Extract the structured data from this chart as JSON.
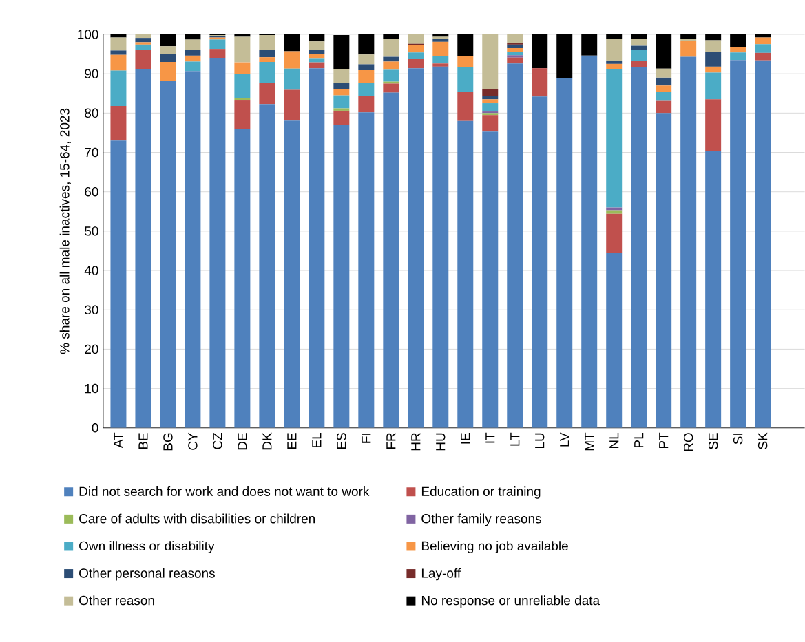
{
  "chart_data": {
    "type": "bar",
    "stacked": true,
    "ylabel": "% share on all male inactives, 15-64, 2023",
    "categories": [
      "AT",
      "BE",
      "BG",
      "CY",
      "CZ",
      "DE",
      "DK",
      "EE",
      "EL",
      "ES",
      "FI",
      "FR",
      "HR",
      "HU",
      "IE",
      "IT",
      "LT",
      "LU",
      "LV",
      "MT",
      "NL",
      "PL",
      "PT",
      "RO",
      "SE",
      "SI",
      "SK"
    ],
    "ylim": [
      0,
      100
    ],
    "yticks": [
      0,
      10,
      20,
      30,
      40,
      50,
      60,
      70,
      80,
      90,
      100
    ],
    "grid": "y",
    "legend": "bottom",
    "series": [
      {
        "name": "Did not search for work and does not want to work",
        "color": "#4f81bd",
        "values": [
          73.0,
          91.1,
          88.2,
          90.7,
          94.0,
          76.0,
          82.3,
          78.1,
          91.4,
          77.0,
          80.2,
          85.2,
          91.4,
          91.8,
          78.0,
          75.3,
          92.6,
          84.2,
          88.9,
          94.6,
          44.4,
          91.7,
          80.0,
          94.3,
          70.3,
          93.5,
          93.4
        ]
      },
      {
        "name": "Education or training",
        "color": "#c0504d",
        "values": [
          8.8,
          4.9,
          0,
          0,
          2.3,
          7.2,
          5.4,
          7.8,
          1.5,
          3.6,
          4.1,
          2.3,
          2.3,
          0.8,
          7.4,
          4.2,
          1.5,
          7.2,
          0,
          0,
          10.0,
          1.6,
          3.1,
          0,
          13.2,
          0,
          1.9
        ]
      },
      {
        "name": "Care of adults with disabilities or children",
        "color": "#9bbb59",
        "values": [
          0,
          0,
          0,
          0,
          0,
          0.7,
          0,
          0,
          0,
          0.6,
          0,
          0.5,
          0,
          0,
          0,
          0.5,
          0,
          0,
          0,
          0,
          0.9,
          0,
          0,
          0,
          0,
          0,
          0
        ]
      },
      {
        "name": "Other family reasons",
        "color": "#8064a2",
        "values": [
          0,
          0,
          0,
          0,
          0,
          0,
          0,
          0,
          0,
          null,
          0,
          0,
          0,
          0,
          0,
          0.4,
          0.6,
          0,
          0,
          0,
          0.7,
          0,
          0,
          0,
          0,
          0,
          0
        ]
      },
      {
        "name": "Own illness or disability",
        "color": "#4bacc6",
        "values": [
          9.0,
          1.4,
          0,
          2.4,
          2.4,
          6.1,
          5.3,
          5.4,
          0.9,
          3.3,
          3.4,
          3.0,
          1.7,
          1.8,
          6.3,
          2.1,
          0.9,
          0,
          0,
          0,
          35.1,
          2.8,
          2.3,
          0,
          6.8,
          1.9,
          2.2
        ]
      },
      {
        "name": "Believing no job available",
        "color": "#f79646",
        "values": [
          4.0,
          0.6,
          4.8,
          1.5,
          0.5,
          2.9,
          1.2,
          4.4,
          1.2,
          1.6,
          3.2,
          2.1,
          1.8,
          3.7,
          2.8,
          1.0,
          0.9,
          0,
          0,
          0,
          1.4,
          0,
          1.6,
          4.1,
          1.5,
          1.4,
          1.7
        ]
      },
      {
        "name": "Other personal reasons",
        "color": "#2c4d75",
        "values": [
          1.1,
          1.1,
          2.0,
          1.4,
          0.3,
          0,
          1.8,
          0,
          1.0,
          1.5,
          1.5,
          1.2,
          0,
          0.7,
          0,
          0.9,
          0.9,
          0,
          0,
          0,
          0.8,
          1.0,
          2.0,
          0,
          3.7,
          0,
          0
        ]
      },
      {
        "name": "Lay-off",
        "color": "#772c2a",
        "values": [
          0,
          0,
          0,
          0,
          0,
          0,
          0,
          0,
          0,
          0,
          0,
          0,
          0.4,
          0,
          0,
          1.7,
          0.5,
          0,
          0,
          0,
          0,
          0,
          0,
          0,
          0,
          0,
          0
        ]
      },
      {
        "name": "Other reason",
        "color": "#c4bd97",
        "values": [
          3.3,
          0.9,
          2.0,
          2.7,
          0.3,
          6.5,
          3.8,
          0,
          2.2,
          3.5,
          2.5,
          4.5,
          2.4,
          0.6,
          0,
          13.9,
          2.1,
          0,
          0,
          0,
          5.6,
          1.8,
          2.3,
          0.5,
          3.0,
          0,
          0
        ]
      },
      {
        "name": "No response or unreliable data",
        "color": "#000000",
        "values": [
          0.8,
          0,
          3.0,
          1.3,
          0.2,
          0.6,
          0.2,
          4.3,
          1.8,
          8.7,
          5.1,
          1.2,
          0,
          0.6,
          5.5,
          0,
          0,
          8.6,
          11.1,
          5.4,
          1.1,
          1.1,
          8.7,
          1.1,
          1.5,
          3.2,
          0.8
        ]
      }
    ]
  }
}
